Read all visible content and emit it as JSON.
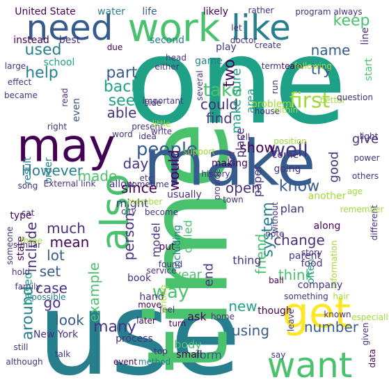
{
  "palette": {
    "dark_purple": "#440154",
    "indigo": "#46327e",
    "blue": "#365c8d",
    "steel": "#277f8e",
    "teal": "#1fa187",
    "green": "#4ac16d",
    "lime": "#a0da39",
    "yellow": "#fde725"
  },
  "words": [
    {
      "text": "one",
      "color": "#1fa187"
    },
    {
      "text": "use",
      "color": "#277f8e"
    },
    {
      "text": "time",
      "color": "#4ac16d"
    },
    {
      "text": "make",
      "color": "#365c8d"
    },
    {
      "text": "may",
      "color": "#440154"
    },
    {
      "text": "work",
      "color": "#4ac16d"
    },
    {
      "text": "like",
      "color": "#277f8e"
    },
    {
      "text": "need",
      "color": "#365c8d"
    },
    {
      "text": "also",
      "color": "#4ac16d"
    },
    {
      "text": "get",
      "color": "#fde725"
    },
    {
      "text": "want",
      "color": "#4ac16d"
    },
    {
      "text": "people",
      "color": "#365c8d"
    },
    {
      "text": "take",
      "color": "#4ac16d"
    },
    {
      "text": "first",
      "color": "#a0da39"
    },
    {
      "text": "well",
      "color": "#46327e"
    },
    {
      "text": "used",
      "color": "#277f8e"
    },
    {
      "text": "keep",
      "color": "#4ac16d"
    },
    {
      "text": "name",
      "color": "#365c8d"
    },
    {
      "text": "help",
      "color": "#277f8e"
    },
    {
      "text": "part",
      "color": "#365c8d"
    },
    {
      "text": "two",
      "color": "#440154"
    },
    {
      "text": "back",
      "color": "#1fa187"
    },
    {
      "text": "see",
      "color": "#1fa187"
    },
    {
      "text": "able",
      "color": "#46327e"
    },
    {
      "text": "could",
      "color": "#46327e"
    },
    {
      "text": "find",
      "color": "#46327e"
    },
    {
      "text": "show",
      "color": "#440154"
    },
    {
      "text": "try",
      "color": "#365c8d"
    },
    {
      "text": "give",
      "color": "#46327e"
    },
    {
      "text": "However",
      "color": "#277f8e"
    },
    {
      "text": "day",
      "color": "#46327e"
    },
    {
      "text": "made",
      "color": "#4ac16d"
    },
    {
      "text": "since",
      "color": "#440154"
    },
    {
      "text": "might",
      "color": "#46327e"
    },
    {
      "text": "much",
      "color": "#46327e"
    },
    {
      "text": "mean",
      "color": "#440154"
    },
    {
      "text": "lot",
      "color": "#365c8d"
    },
    {
      "text": "set",
      "color": "#365c8d"
    },
    {
      "text": "would",
      "color": "#440154"
    },
    {
      "text": "know",
      "color": "#365c8d"
    },
    {
      "text": "system",
      "color": "#277f8e"
    },
    {
      "text": "change",
      "color": "#46327e"
    },
    {
      "text": "think",
      "color": "#4ac16d"
    },
    {
      "text": "year",
      "color": "#4ac16d"
    },
    {
      "text": "end",
      "color": "#46327e"
    },
    {
      "text": "way",
      "color": "#4ac16d"
    },
    {
      "text": "new",
      "color": "#1fa187"
    },
    {
      "text": "ask",
      "color": "#440154"
    },
    {
      "text": "using",
      "color": "#365c8d"
    },
    {
      "text": "number",
      "color": "#365c8d"
    },
    {
      "text": "look",
      "color": "#365c8d"
    },
    {
      "text": "go",
      "color": "#46327e"
    },
    {
      "text": "case",
      "color": "#46327e"
    },
    {
      "text": "many",
      "color": "#46327e"
    },
    {
      "text": "around",
      "color": "#277f8e"
    },
    {
      "text": "example",
      "color": "#4ac16d"
    },
    {
      "text": "United State",
      "color": "#440154"
    },
    {
      "text": "water",
      "color": "#277f8e"
    },
    {
      "text": "life",
      "color": "#365c8d"
    },
    {
      "text": "likely",
      "color": "#440154"
    },
    {
      "text": "school",
      "color": "#1fa187"
    },
    {
      "text": "instead",
      "color": "#440154"
    },
    {
      "text": "best",
      "color": "#46327e"
    },
    {
      "text": "due",
      "color": "#440154"
    },
    {
      "text": "second",
      "color": "#277f8e"
    },
    {
      "text": "play",
      "color": "#46327e"
    },
    {
      "text": "line",
      "color": "#46327e"
    },
    {
      "text": "start",
      "color": "#4ac16d"
    },
    {
      "text": "game",
      "color": "#277f8e"
    },
    {
      "text": "team",
      "color": "#440154"
    },
    {
      "text": "problem",
      "color": "#a0da39"
    },
    {
      "text": "result",
      "color": "#277f8e"
    },
    {
      "text": "order",
      "color": "#277f8e"
    },
    {
      "text": "even",
      "color": "#365c8d"
    },
    {
      "text": "make sure",
      "color": "#1fa187"
    },
    {
      "text": "area",
      "color": "#1fa187"
    },
    {
      "text": "place",
      "color": "#46327e"
    },
    {
      "text": "paper",
      "color": "#46327e"
    },
    {
      "text": "good",
      "color": "#46327e"
    },
    {
      "text": "come",
      "color": "#46327e"
    },
    {
      "text": "going",
      "color": "#46327e"
    },
    {
      "text": "history",
      "color": "#46327e"
    },
    {
      "text": "important",
      "color": "#46327e"
    },
    {
      "text": "person",
      "color": "#46327e"
    },
    {
      "text": "model",
      "color": "#46327e"
    },
    {
      "text": "called",
      "color": "#4ac16d"
    },
    {
      "text": "including",
      "color": "#277f8e"
    },
    {
      "text": "friend",
      "color": "#4ac16d"
    },
    {
      "text": "thing",
      "color": "#46327e"
    },
    {
      "text": "based",
      "color": "#1fa187"
    },
    {
      "text": "include",
      "color": "#46327e"
    },
    {
      "text": "state",
      "color": "#440154"
    },
    {
      "text": "type",
      "color": "#440154"
    },
    {
      "text": "possible",
      "color": "#277f8e"
    },
    {
      "text": "put",
      "color": "#440154"
    },
    {
      "text": "book",
      "color": "#46327e"
    },
    {
      "text": "found",
      "color": "#46327e"
    },
    {
      "text": "hand",
      "color": "#46327e"
    },
    {
      "text": "body",
      "color": "#4ac16d"
    },
    {
      "text": "form",
      "color": "#365c8d"
    },
    {
      "text": "often",
      "color": "#1fa187"
    },
    {
      "text": "information",
      "color": "#a0da39"
    },
    {
      "text": "parent",
      "color": "#46327e"
    },
    {
      "text": "company",
      "color": "#46327e"
    },
    {
      "text": "though",
      "color": "#440154"
    },
    {
      "text": "along",
      "color": "#440154"
    },
    {
      "text": "another",
      "color": "#a0da39"
    },
    {
      "text": "town",
      "color": "#46327e"
    },
    {
      "text": "making",
      "color": "#440154"
    },
    {
      "text": "provide",
      "color": "#46327e"
    },
    {
      "text": "usually",
      "color": "#46327e"
    },
    {
      "text": "become",
      "color": "#46327e"
    },
    {
      "text": "allow",
      "color": "#46327e"
    },
    {
      "text": "city",
      "color": "#46327e"
    },
    {
      "text": "top",
      "color": "#46327e"
    },
    {
      "text": "process",
      "color": "#46327e"
    },
    {
      "text": "New York",
      "color": "#46327e"
    },
    {
      "text": "still",
      "color": "#46327e"
    },
    {
      "text": "although",
      "color": "#46327e"
    },
    {
      "text": "talk",
      "color": "#46327e"
    },
    {
      "text": "event",
      "color": "#440154"
    },
    {
      "text": "method",
      "color": "#277f8e"
    },
    {
      "text": "small",
      "color": "#440154"
    },
    {
      "text": "home",
      "color": "#46327e"
    },
    {
      "text": "feel",
      "color": "#46327e"
    },
    {
      "text": "later",
      "color": "#440154"
    },
    {
      "text": "move",
      "color": "#440154"
    },
    {
      "text": "turn",
      "color": "#440154"
    },
    {
      "text": "say",
      "color": "#46327e"
    },
    {
      "text": "data",
      "color": "#440154"
    },
    {
      "text": "given",
      "color": "#46327e"
    },
    {
      "text": "known",
      "color": "#46327e"
    },
    {
      "text": "hair",
      "color": "#a0da39"
    },
    {
      "text": "something",
      "color": "#46327e"
    },
    {
      "text": "leave",
      "color": "#46327e"
    },
    {
      "text": "especially",
      "color": "#a0da39"
    },
    {
      "text": "ball",
      "color": "#440154"
    },
    {
      "text": "story",
      "color": "#46327e"
    },
    {
      "text": "food",
      "color": "#46327e"
    },
    {
      "text": "different",
      "color": "#46327e"
    },
    {
      "text": "power",
      "color": "#46327e"
    },
    {
      "text": "light",
      "color": "#46327e"
    },
    {
      "text": "others",
      "color": "#46327e"
    },
    {
      "text": "better",
      "color": "#a0da39"
    },
    {
      "text": "question",
      "color": "#46327e"
    },
    {
      "text": "position",
      "color": "#a0da39"
    },
    {
      "text": "tell",
      "color": "#46327e"
    },
    {
      "text": "support",
      "color": "#a0da39"
    },
    {
      "text": "sometime",
      "color": "#46327e"
    },
    {
      "text": "etc",
      "color": "#46327e"
    },
    {
      "text": "idea",
      "color": "#46327e"
    },
    {
      "text": "write",
      "color": "#46327e"
    },
    {
      "text": "present",
      "color": "#46327e"
    },
    {
      "text": "right",
      "color": "#46327e"
    },
    {
      "text": "word",
      "color": "#46327e"
    },
    {
      "text": "song",
      "color": "#46327e"
    },
    {
      "text": "External link",
      "color": "#46327e"
    },
    {
      "text": "member",
      "color": "#a0da39"
    },
    {
      "text": "little",
      "color": "#a0da39"
    },
    {
      "text": "either",
      "color": "#46327e"
    },
    {
      "text": "head",
      "color": "#46327e"
    },
    {
      "text": "side",
      "color": "#46327e"
    },
    {
      "text": "several",
      "color": "#46327e"
    },
    {
      "text": "house",
      "color": "#46327e"
    },
    {
      "text": "run",
      "color": "#46327e"
    },
    {
      "text": "within",
      "color": "#a0da39"
    },
    {
      "text": "doctor",
      "color": "#46327e"
    },
    {
      "text": "let",
      "color": "#46327e"
    },
    {
      "text": "rather",
      "color": "#46327e"
    },
    {
      "text": "create",
      "color": "#46327e"
    },
    {
      "text": "program",
      "color": "#46327e"
    },
    {
      "text": "always",
      "color": "#46327e"
    },
    {
      "text": "term",
      "color": "#46327e"
    },
    {
      "text": "following",
      "color": "#a0da39"
    },
    {
      "text": "large",
      "color": "#46327e"
    },
    {
      "text": "effect",
      "color": "#46327e"
    },
    {
      "text": "became",
      "color": "#46327e"
    },
    {
      "text": "read",
      "color": "#46327e"
    },
    {
      "text": "someone",
      "color": "#46327e"
    },
    {
      "text": "similar",
      "color": "#46327e"
    },
    {
      "text": "three",
      "color": "#a0da39"
    },
    {
      "text": "cat",
      "color": "#46327e"
    },
    {
      "text": "family",
      "color": "#46327e"
    },
    {
      "text": "hold",
      "color": "#46327e"
    },
    {
      "text": "writing",
      "color": "#a0da39"
    },
    {
      "text": "service",
      "color": "#46327e"
    },
    {
      "text": "note",
      "color": "#46327e"
    },
    {
      "text": "without",
      "color": "#46327e"
    },
    {
      "text": "remember",
      "color": "#a0da39"
    },
    {
      "text": "age",
      "color": "#a0da39"
    },
    {
      "text": "said",
      "color": "#46327e"
    },
    {
      "text": "open",
      "color": "#46327e"
    },
    {
      "text": "plan",
      "color": "#46327e"
    },
    {
      "text": "cause",
      "color": "#a0da39"
    },
    {
      "text": "group",
      "color": "#46327e"
    },
    {
      "text": "u",
      "color": "#46327e"
    },
    {
      "text": "long",
      "color": "#fde725"
    }
  ]
}
